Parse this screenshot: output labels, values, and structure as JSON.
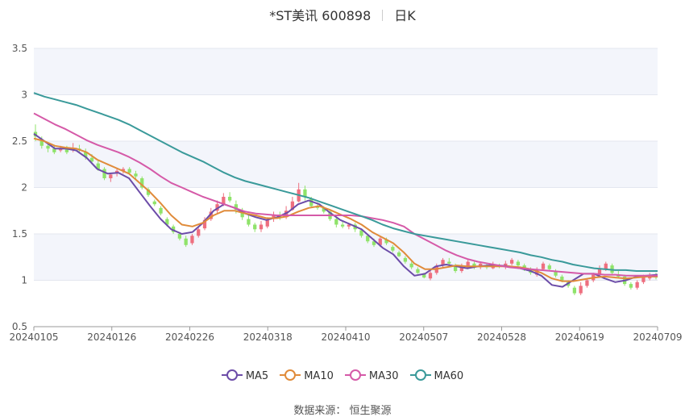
{
  "header": {
    "title": "*ST美讯 600898",
    "period": "日K"
  },
  "source": "数据来源： 恒生聚源",
  "colors": {
    "up": "#ee6f7f",
    "down": "#8fe36a",
    "band": "#f3f5fb"
  },
  "chart_data": {
    "type": "candlestick",
    "x_ticks": [
      "20240105",
      "20240126",
      "20240226",
      "20240318",
      "20240410",
      "20240507",
      "20240528",
      "20240619",
      "20240709"
    ],
    "y_ticks": [
      "0.5",
      "1",
      "1.5",
      "2",
      "2.5",
      "3",
      "3.5"
    ],
    "ylim": [
      0.5,
      3.5
    ],
    "legend_position": "bottom",
    "series": [
      {
        "name": "MA5",
        "color": "#6c4ca8",
        "values": [
          2.58,
          2.5,
          2.42,
          2.42,
          2.4,
          2.32,
          2.2,
          2.15,
          2.16,
          2.1,
          1.95,
          1.8,
          1.66,
          1.55,
          1.5,
          1.52,
          1.62,
          1.75,
          1.82,
          1.78,
          1.72,
          1.68,
          1.65,
          1.68,
          1.73,
          1.82,
          1.86,
          1.82,
          1.73,
          1.65,
          1.6,
          1.55,
          1.45,
          1.35,
          1.28,
          1.15,
          1.05,
          1.07,
          1.15,
          1.17,
          1.15,
          1.13,
          1.15,
          1.16,
          1.16,
          1.15,
          1.13,
          1.1,
          1.05,
          0.95,
          0.93,
          1.0,
          1.07,
          1.07,
          1.02,
          0.98,
          1.0,
          1.04,
          1.05,
          1.06
        ]
      },
      {
        "name": "MA10",
        "color": "#e08b3a",
        "values": [
          2.53,
          2.5,
          2.45,
          2.43,
          2.42,
          2.38,
          2.3,
          2.25,
          2.2,
          2.15,
          2.05,
          1.95,
          1.83,
          1.7,
          1.6,
          1.58,
          1.62,
          1.7,
          1.75,
          1.75,
          1.72,
          1.7,
          1.67,
          1.67,
          1.69,
          1.74,
          1.78,
          1.8,
          1.76,
          1.71,
          1.66,
          1.6,
          1.52,
          1.46,
          1.4,
          1.3,
          1.18,
          1.12,
          1.12,
          1.14,
          1.16,
          1.15,
          1.15,
          1.15,
          1.15,
          1.15,
          1.14,
          1.12,
          1.08,
          1.02,
          0.99,
          0.99,
          1.01,
          1.03,
          1.04,
          1.03,
          1.02,
          1.03,
          1.04,
          1.04
        ]
      },
      {
        "name": "MA30",
        "color": "#d55aa8",
        "values": [
          2.8,
          2.74,
          2.68,
          2.63,
          2.57,
          2.51,
          2.46,
          2.42,
          2.38,
          2.33,
          2.27,
          2.2,
          2.12,
          2.05,
          2.0,
          1.95,
          1.9,
          1.86,
          1.82,
          1.78,
          1.74,
          1.72,
          1.71,
          1.7,
          1.7,
          1.7,
          1.7,
          1.7,
          1.7,
          1.7,
          1.7,
          1.69,
          1.67,
          1.65,
          1.62,
          1.58,
          1.5,
          1.44,
          1.38,
          1.32,
          1.27,
          1.23,
          1.2,
          1.18,
          1.16,
          1.14,
          1.13,
          1.12,
          1.11,
          1.1,
          1.09,
          1.08,
          1.07,
          1.07,
          1.06,
          1.06,
          1.05,
          1.05,
          1.05,
          1.05
        ]
      },
      {
        "name": "MA60",
        "color": "#3a9a9a",
        "values": [
          3.02,
          2.98,
          2.95,
          2.92,
          2.89,
          2.85,
          2.81,
          2.77,
          2.73,
          2.68,
          2.62,
          2.56,
          2.5,
          2.44,
          2.38,
          2.33,
          2.28,
          2.22,
          2.16,
          2.11,
          2.07,
          2.04,
          2.01,
          1.98,
          1.95,
          1.92,
          1.89,
          1.85,
          1.81,
          1.77,
          1.73,
          1.69,
          1.65,
          1.6,
          1.56,
          1.53,
          1.5,
          1.48,
          1.46,
          1.44,
          1.42,
          1.4,
          1.38,
          1.36,
          1.34,
          1.32,
          1.3,
          1.27,
          1.25,
          1.22,
          1.2,
          1.17,
          1.15,
          1.13,
          1.12,
          1.11,
          1.11,
          1.1,
          1.1,
          1.1
        ]
      }
    ],
    "candles": [
      [
        2.6,
        2.55,
        2.68,
        2.5
      ],
      [
        2.5,
        2.45,
        2.55,
        2.42
      ],
      [
        2.45,
        2.42,
        2.48,
        2.38
      ],
      [
        2.42,
        2.38,
        2.45,
        2.36
      ],
      [
        2.4,
        2.42,
        2.45,
        2.38
      ],
      [
        2.42,
        2.38,
        2.45,
        2.36
      ],
      [
        2.4,
        2.42,
        2.48,
        2.38
      ],
      [
        2.42,
        2.4,
        2.46,
        2.38
      ],
      [
        2.38,
        2.33,
        2.42,
        2.3
      ],
      [
        2.32,
        2.28,
        2.36,
        2.25
      ],
      [
        2.26,
        2.2,
        2.3,
        2.18
      ],
      [
        2.2,
        2.1,
        2.22,
        2.08
      ],
      [
        2.1,
        2.14,
        2.16,
        2.06
      ],
      [
        2.15,
        2.18,
        2.2,
        2.12
      ],
      [
        2.18,
        2.2,
        2.22,
        2.15
      ],
      [
        2.2,
        2.16,
        2.22,
        2.14
      ],
      [
        2.15,
        2.12,
        2.18,
        2.08
      ],
      [
        2.1,
        2.0,
        2.12,
        1.98
      ],
      [
        1.98,
        1.92,
        2.0,
        1.9
      ],
      [
        1.85,
        1.82,
        1.87,
        1.8
      ],
      [
        1.78,
        1.72,
        1.8,
        1.7
      ],
      [
        1.66,
        1.6,
        1.68,
        1.58
      ],
      [
        1.58,
        1.52,
        1.6,
        1.5
      ],
      [
        1.5,
        1.45,
        1.52,
        1.43
      ],
      [
        1.45,
        1.38,
        1.48,
        1.36
      ],
      [
        1.4,
        1.48,
        1.5,
        1.38
      ],
      [
        1.48,
        1.55,
        1.58,
        1.46
      ],
      [
        1.56,
        1.65,
        1.68,
        1.54
      ],
      [
        1.66,
        1.74,
        1.78,
        1.64
      ],
      [
        1.75,
        1.82,
        1.86,
        1.72
      ],
      [
        1.82,
        1.9,
        1.94,
        1.8
      ],
      [
        1.9,
        1.86,
        1.95,
        1.84
      ],
      [
        1.82,
        1.76,
        1.86,
        1.72
      ],
      [
        1.74,
        1.68,
        1.78,
        1.65
      ],
      [
        1.66,
        1.6,
        1.7,
        1.58
      ],
      [
        1.6,
        1.55,
        1.62,
        1.52
      ],
      [
        1.55,
        1.6,
        1.64,
        1.52
      ],
      [
        1.58,
        1.65,
        1.68,
        1.56
      ],
      [
        1.66,
        1.7,
        1.74,
        1.63
      ],
      [
        1.7,
        1.68,
        1.74,
        1.65
      ],
      [
        1.68,
        1.75,
        1.8,
        1.66
      ],
      [
        1.76,
        1.85,
        1.9,
        1.75
      ],
      [
        1.85,
        1.98,
        2.05,
        1.84
      ],
      [
        1.98,
        1.9,
        2.02,
        1.86
      ],
      [
        1.88,
        1.8,
        1.9,
        1.78
      ],
      [
        1.8,
        1.78,
        1.84,
        1.76
      ],
      [
        1.78,
        1.74,
        1.8,
        1.72
      ],
      [
        1.74,
        1.66,
        1.76,
        1.64
      ],
      [
        1.66,
        1.6,
        1.68,
        1.57
      ],
      [
        1.6,
        1.58,
        1.64,
        1.56
      ],
      [
        1.58,
        1.6,
        1.62,
        1.55
      ],
      [
        1.6,
        1.55,
        1.62,
        1.52
      ],
      [
        1.54,
        1.48,
        1.56,
        1.46
      ],
      [
        1.48,
        1.42,
        1.5,
        1.4
      ],
      [
        1.42,
        1.38,
        1.45,
        1.36
      ],
      [
        1.38,
        1.45,
        1.48,
        1.36
      ],
      [
        1.44,
        1.4,
        1.46,
        1.38
      ],
      [
        1.36,
        1.32,
        1.38,
        1.3
      ],
      [
        1.3,
        1.26,
        1.32,
        1.25
      ],
      [
        1.24,
        1.2,
        1.26,
        1.18
      ],
      [
        1.18,
        1.14,
        1.2,
        1.12
      ],
      [
        1.12,
        1.08,
        1.14,
        1.07
      ],
      [
        1.07,
        1.03,
        1.08,
        1.02
      ],
      [
        1.02,
        1.08,
        1.12,
        1.0
      ],
      [
        1.08,
        1.15,
        1.18,
        1.06
      ],
      [
        1.16,
        1.22,
        1.24,
        1.14
      ],
      [
        1.2,
        1.18,
        1.24,
        1.15
      ],
      [
        1.16,
        1.1,
        1.18,
        1.08
      ],
      [
        1.1,
        1.14,
        1.18,
        1.08
      ],
      [
        1.14,
        1.2,
        1.22,
        1.12
      ],
      [
        1.18,
        1.15,
        1.2,
        1.12
      ],
      [
        1.14,
        1.18,
        1.2,
        1.12
      ],
      [
        1.16,
        1.14,
        1.19,
        1.12
      ],
      [
        1.13,
        1.17,
        1.2,
        1.12
      ],
      [
        1.16,
        1.15,
        1.18,
        1.13
      ],
      [
        1.14,
        1.18,
        1.21,
        1.12
      ],
      [
        1.18,
        1.22,
        1.24,
        1.16
      ],
      [
        1.2,
        1.16,
        1.22,
        1.14
      ],
      [
        1.16,
        1.12,
        1.18,
        1.1
      ],
      [
        1.12,
        1.08,
        1.14,
        1.06
      ],
      [
        1.06,
        1.12,
        1.14,
        1.04
      ],
      [
        1.12,
        1.18,
        1.2,
        1.1
      ],
      [
        1.16,
        1.12,
        1.18,
        1.1
      ],
      [
        1.1,
        1.05,
        1.12,
        1.03
      ],
      [
        1.04,
        1.0,
        1.06,
        0.98
      ],
      [
        0.98,
        0.94,
        1.0,
        0.92
      ],
      [
        0.92,
        0.86,
        0.94,
        0.84
      ],
      [
        0.86,
        0.94,
        0.98,
        0.84
      ],
      [
        0.94,
        1.0,
        1.02,
        0.92
      ],
      [
        1.0,
        1.06,
        1.08,
        0.98
      ],
      [
        1.06,
        1.12,
        1.16,
        1.04
      ],
      [
        1.12,
        1.18,
        1.2,
        1.1
      ],
      [
        1.16,
        1.08,
        1.18,
        1.06
      ],
      [
        1.06,
        1.04,
        1.1,
        1.02
      ],
      [
        1.04,
        0.96,
        1.06,
        0.94
      ],
      [
        0.96,
        0.92,
        0.98,
        0.9
      ],
      [
        0.92,
        0.98,
        1.0,
        0.9
      ],
      [
        0.98,
        1.04,
        1.06,
        0.96
      ],
      [
        1.02,
        1.06,
        1.08,
        1.0
      ],
      [
        1.05,
        1.03,
        1.08,
        1.01
      ]
    ]
  }
}
